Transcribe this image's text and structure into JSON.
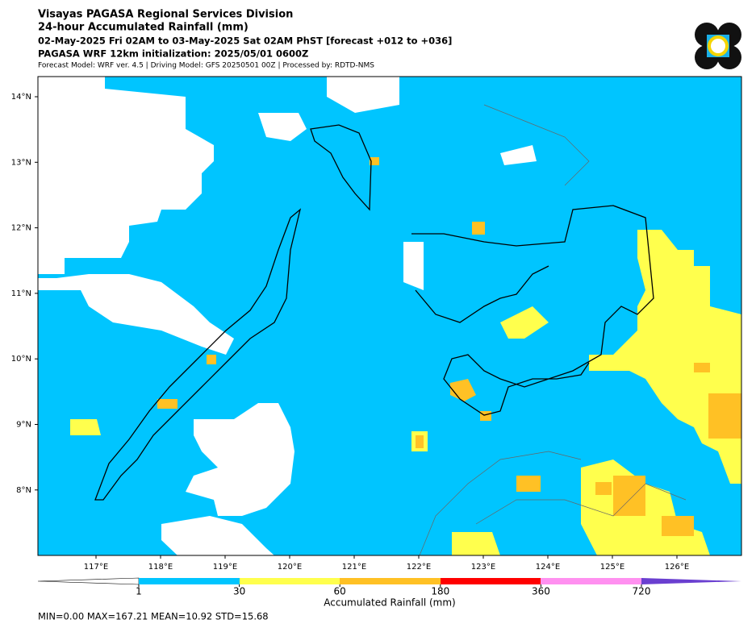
{
  "header": {
    "lines": [
      "Visayas PAGASA Regional Services Division",
      "24-hour Accumulated Rainfall (mm)",
      "02-May-2025 Fri 02AM to 03-May-2025 Sat 02AM PhST [forecast +012 to +036]",
      "PAGASA WRF 12km initialization: 2025/05/01 0600Z",
      "Forecast Model: WRF ver. 4.5 | Driving Model: GFS 20250501 00Z | Processed by: RDTD-NMS"
    ]
  },
  "map": {
    "x_ticks": [
      "117°E",
      "118°E",
      "119°E",
      "120°E",
      "121°E",
      "122°E",
      "123°E",
      "124°E",
      "125°E",
      "126°E"
    ],
    "y_ticks": [
      "14°N",
      "13°N",
      "12°N",
      "11°N",
      "10°N",
      "9°N",
      "8°N"
    ]
  },
  "colorbar": {
    "ticks": [
      "1",
      "30",
      "60",
      "180",
      "360",
      "720"
    ],
    "label": "Accumulated Rainfall (mm)"
  },
  "stats": "MIN=0.00   MAX=167.21   MEAN=10.92   STD=15.68"
}
